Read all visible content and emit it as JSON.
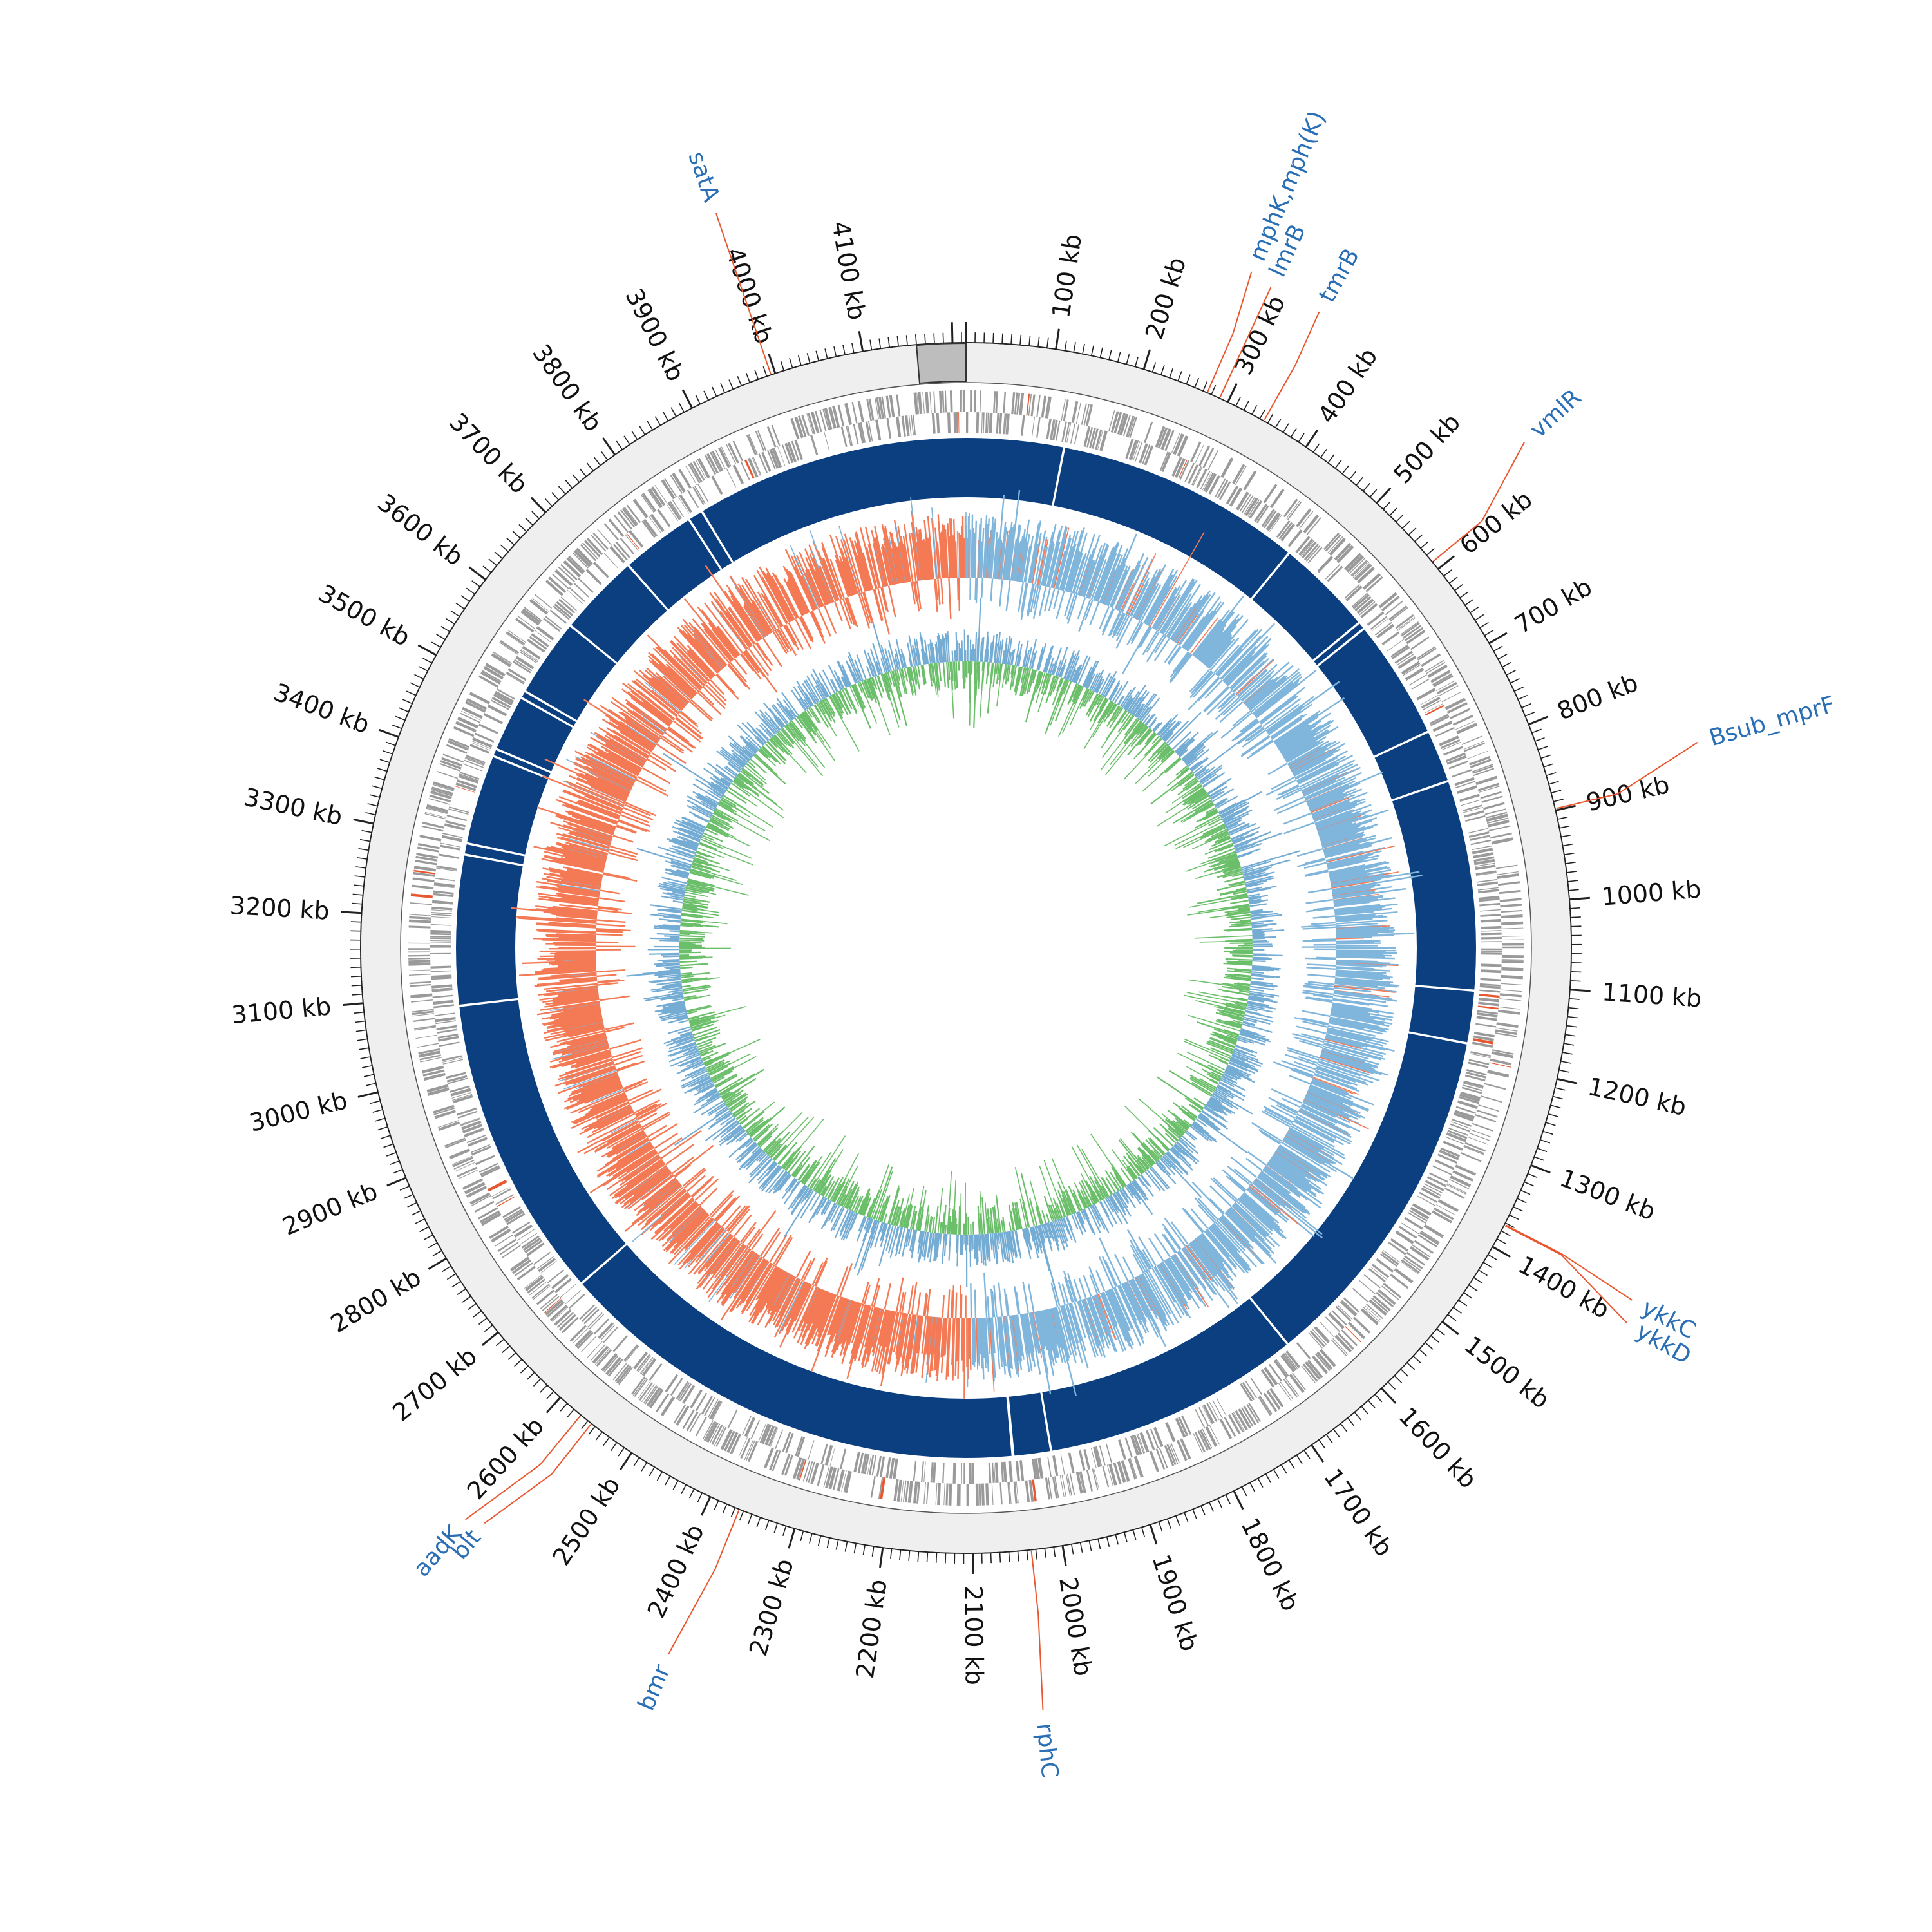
{
  "map": {
    "genome_length_kb": 4215,
    "tick_labels": [
      "100 kb",
      "200 kb",
      "300 kb",
      "400 kb",
      "500 kb",
      "600 kb",
      "700 kb",
      "800 kb",
      "900 kb",
      "1000 kb",
      "1100 kb",
      "1200 kb",
      "1300 kb",
      "1400 kb",
      "1500 kb",
      "1600 kb",
      "1700 kb",
      "1800 kb",
      "1900 kb",
      "2000 kb",
      "2100 kb",
      "2200 kb",
      "2300 kb",
      "2400 kb",
      "2500 kb",
      "2600 kb",
      "2700 kb",
      "2800 kb",
      "2900 kb",
      "3000 kb",
      "3100 kb",
      "3200 kb",
      "3300 kb",
      "3400 kb",
      "3500 kb",
      "3600 kb",
      "3700 kb",
      "3800 kb",
      "3900 kb",
      "4000 kb",
      "4100 kb"
    ],
    "tick_positions_kb": [
      100,
      200,
      300,
      400,
      500,
      600,
      700,
      800,
      900,
      1000,
      1100,
      1200,
      1300,
      1400,
      1500,
      1600,
      1700,
      1800,
      1900,
      2000,
      2100,
      2200,
      2300,
      2400,
      2500,
      2600,
      2700,
      2800,
      2900,
      3000,
      3100,
      3200,
      3300,
      3400,
      3500,
      3600,
      3700,
      3800,
      3900,
      4000,
      4100
    ],
    "genes": [
      {
        "name": "satA",
        "position_kb": 3995
      },
      {
        "name": "mphK,mph(K)",
        "position_kb": 275
      },
      {
        "name": "lmrB",
        "position_kb": 290
      },
      {
        "name": "tmrB",
        "position_kb": 345
      },
      {
        "name": "vmlR",
        "position_kb": 590
      },
      {
        "name": "Bsub_mprF",
        "position_kb": 898
      },
      {
        "name": "ykkC",
        "position_kb": 1372
      },
      {
        "name": "ykkD",
        "position_kb": 1373
      },
      {
        "name": "rphC",
        "position_kb": 2035
      },
      {
        "name": "bmr",
        "position_kb": 2365
      },
      {
        "name": "aadK",
        "position_kb": 2570
      },
      {
        "name": "blt",
        "position_kb": 2555
      }
    ],
    "contig_breaks_kb": [
      130,
      460,
      590,
      600,
      760,
      830,
      1110,
      1180,
      1650,
      1995,
      2045,
      2046,
      2680,
      3085,
      3285,
      3300,
      3420,
      3430,
      3505,
      3515,
      3620,
      3730,
      3830,
      3850
    ],
    "gc_skew_positive_range_kb": [
      0,
      2100
    ],
    "colors": {
      "outer_ring": "#efefef",
      "marker_block": "#bdbdbd",
      "gene_features": "#9a9a9a",
      "gene_highlight": "#e8572f",
      "contigs": "#0c3f80",
      "gc_skew_positive": "#80b6dc",
      "gc_skew_negative": "#f47a56",
      "gc_content": "#6cbf6a",
      "gc_content_variation": "#74acd4",
      "gene_label": "#2a6fb5",
      "leader_line": "#e8572f"
    }
  }
}
